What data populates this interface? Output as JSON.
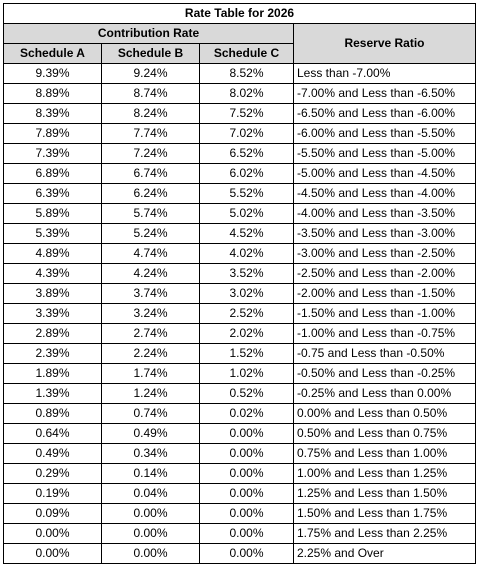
{
  "title": "Rate Table for 2026",
  "group_header": "Contribution Rate",
  "reserve_header": "Reserve Ratio",
  "schedules": [
    "Schedule A",
    "Schedule B",
    "Schedule C"
  ],
  "rows": [
    [
      "9.39%",
      "9.24%",
      "8.52%",
      "Less than -7.00%"
    ],
    [
      "8.89%",
      "8.74%",
      "8.02%",
      "-7.00% and Less than -6.50%"
    ],
    [
      "8.39%",
      "8.24%",
      "7.52%",
      "-6.50% and Less than -6.00%"
    ],
    [
      "7.89%",
      "7.74%",
      "7.02%",
      "-6.00% and Less than -5.50%"
    ],
    [
      "7.39%",
      "7.24%",
      "6.52%",
      "-5.50% and Less than -5.00%"
    ],
    [
      "6.89%",
      "6.74%",
      "6.02%",
      "-5.00% and Less than -4.50%"
    ],
    [
      "6.39%",
      "6.24%",
      "5.52%",
      "-4.50% and Less than -4.00%"
    ],
    [
      "5.89%",
      "5.74%",
      "5.02%",
      "-4.00% and Less than -3.50%"
    ],
    [
      "5.39%",
      "5.24%",
      "4.52%",
      "-3.50% and Less than -3.00%"
    ],
    [
      "4.89%",
      "4.74%",
      "4.02%",
      "-3.00% and Less than -2.50%"
    ],
    [
      "4.39%",
      "4.24%",
      "3.52%",
      "-2.50% and Less than -2.00%"
    ],
    [
      "3.89%",
      "3.74%",
      "3.02%",
      "-2.00% and Less than -1.50%"
    ],
    [
      "3.39%",
      "3.24%",
      "2.52%",
      "-1.50% and Less than -1.00%"
    ],
    [
      "2.89%",
      "2.74%",
      "2.02%",
      "-1.00% and Less than -0.75%"
    ],
    [
      "2.39%",
      "2.24%",
      "1.52%",
      "-0.75 and Less than -0.50%"
    ],
    [
      "1.89%",
      "1.74%",
      "1.02%",
      "-0.50% and Less than -0.25%"
    ],
    [
      "1.39%",
      "1.24%",
      "0.52%",
      "-0.25% and Less than 0.00%"
    ],
    [
      "0.89%",
      "0.74%",
      "0.02%",
      "0.00% and Less than 0.50%"
    ],
    [
      "0.64%",
      "0.49%",
      "0.00%",
      "0.50% and Less than 0.75%"
    ],
    [
      "0.49%",
      "0.34%",
      "0.00%",
      "0.75% and Less than 1.00%"
    ],
    [
      "0.29%",
      "0.14%",
      "0.00%",
      "1.00% and Less than 1.25%"
    ],
    [
      "0.19%",
      "0.04%",
      "0.00%",
      "1.25% and Less than 1.50%"
    ],
    [
      "0.09%",
      "0.00%",
      "0.00%",
      "1.50% and Less than 1.75%"
    ],
    [
      "0.00%",
      "0.00%",
      "0.00%",
      "1.75% and Less than 2.25%"
    ],
    [
      "0.00%",
      "0.00%",
      "0.00%",
      "2.25% and Over"
    ]
  ]
}
